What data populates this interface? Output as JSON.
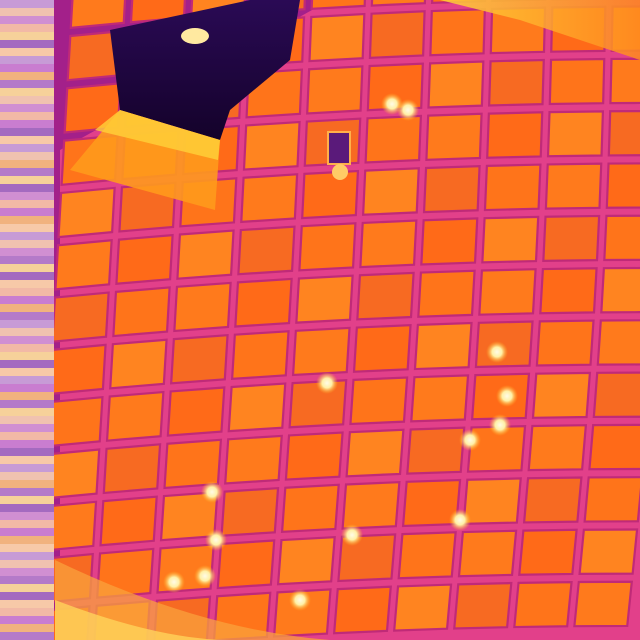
{
  "image": {
    "kind": "thermal-infrared-aerial",
    "subject": "solar-panel-rooftop-array",
    "palette": "ironbow",
    "colors": {
      "cold": "#2a0845",
      "cool": "#7a1fa0",
      "mid": "#e0307a",
      "warm": "#ff6a1a",
      "hot": "#ff9a1c",
      "hotspot": "#fff6c8"
    }
  },
  "scale_bar": {
    "colors": [
      "#c79bd6",
      "#f2b9a6",
      "#b47ac9",
      "#f7c9a8",
      "#d08fd2",
      "#f1b27e",
      "#a46ac0",
      "#f0c2b0",
      "#c97dd0",
      "#f6d19a"
    ]
  },
  "hotspots_count": 14
}
